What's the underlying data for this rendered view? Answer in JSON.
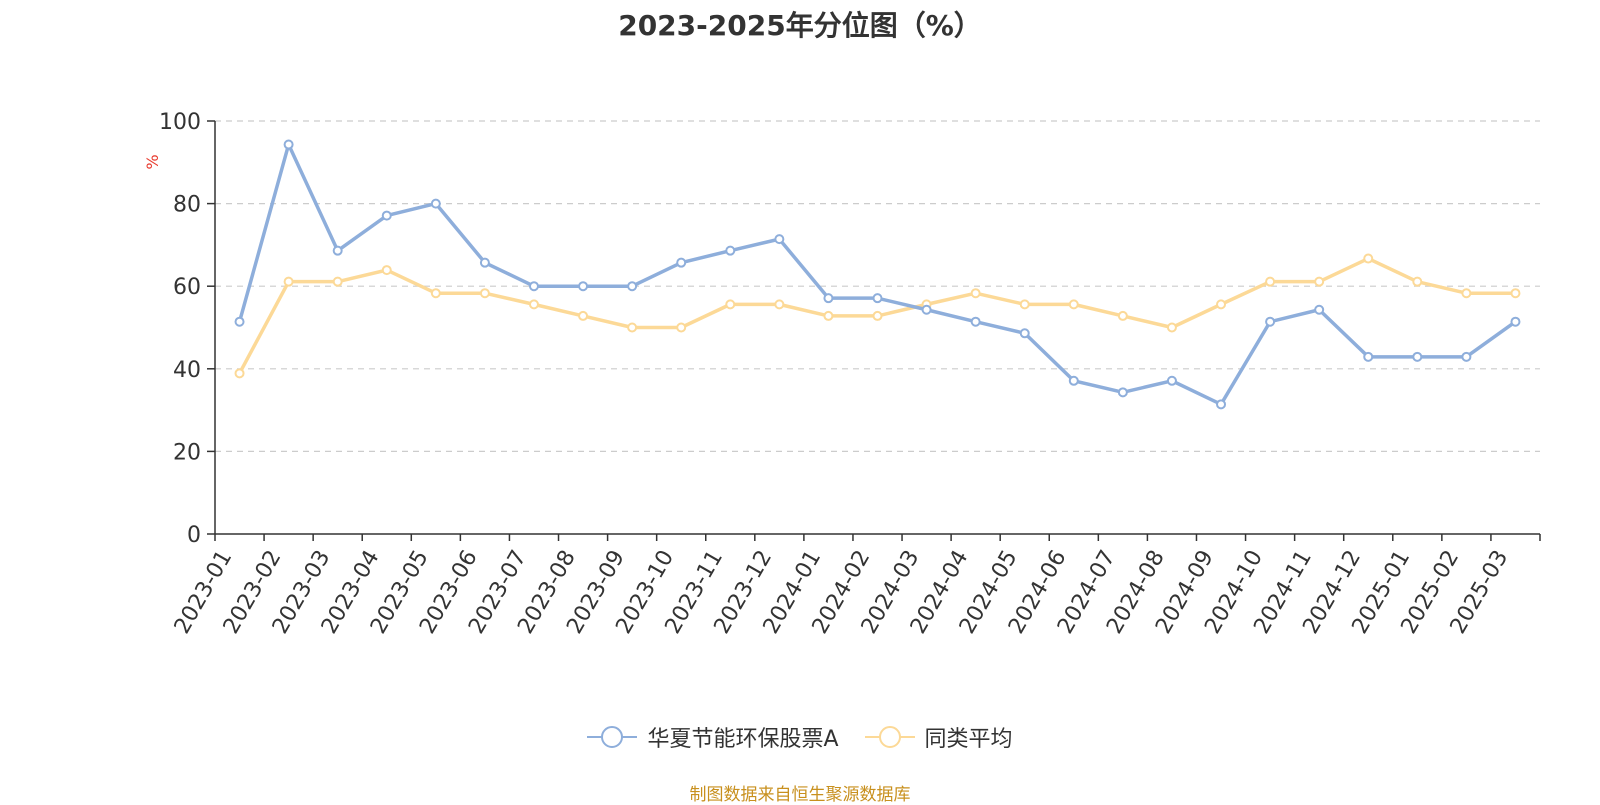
{
  "chart_data": {
    "type": "line",
    "title": "2023-2025年分位图（%）",
    "ylabel": "%",
    "xlabel": "",
    "ylim": [
      0,
      100
    ],
    "yticks": [
      0,
      20,
      40,
      60,
      80,
      100
    ],
    "grid": true,
    "legend_position": "bottom",
    "categories": [
      "2023-01",
      "2023-02",
      "2023-03",
      "2023-04",
      "2023-05",
      "2023-06",
      "2023-07",
      "2023-08",
      "2023-09",
      "2023-10",
      "2023-11",
      "2023-12",
      "2024-01",
      "2024-02",
      "2024-03",
      "2024-04",
      "2024-05",
      "2024-06",
      "2024-07",
      "2024-08",
      "2024-09",
      "2024-10",
      "2024-11",
      "2024-12",
      "2025-01",
      "2025-02",
      "2025-03"
    ],
    "series": [
      {
        "name": "华夏节能环保股票A",
        "color": "#8eaedb",
        "values": [
          51.4,
          94.3,
          68.6,
          77.1,
          80.0,
          65.7,
          60.0,
          60.0,
          60.0,
          65.7,
          68.6,
          71.4,
          57.1,
          57.1,
          54.3,
          51.4,
          48.6,
          37.1,
          34.3,
          37.1,
          31.4,
          51.4,
          54.3,
          42.9,
          42.9,
          42.9,
          51.4
        ]
      },
      {
        "name": "同类平均",
        "color": "#fcd997",
        "values": [
          38.9,
          61.1,
          61.1,
          63.9,
          58.3,
          58.3,
          55.6,
          52.8,
          50.0,
          50.0,
          55.6,
          55.6,
          52.8,
          52.8,
          55.6,
          58.3,
          55.6,
          55.6,
          52.8,
          50.0,
          55.6,
          61.1,
          61.1,
          66.7,
          61.1,
          58.3,
          58.3
        ]
      }
    ]
  },
  "source_note": "制图数据来自恒生聚源数据库"
}
